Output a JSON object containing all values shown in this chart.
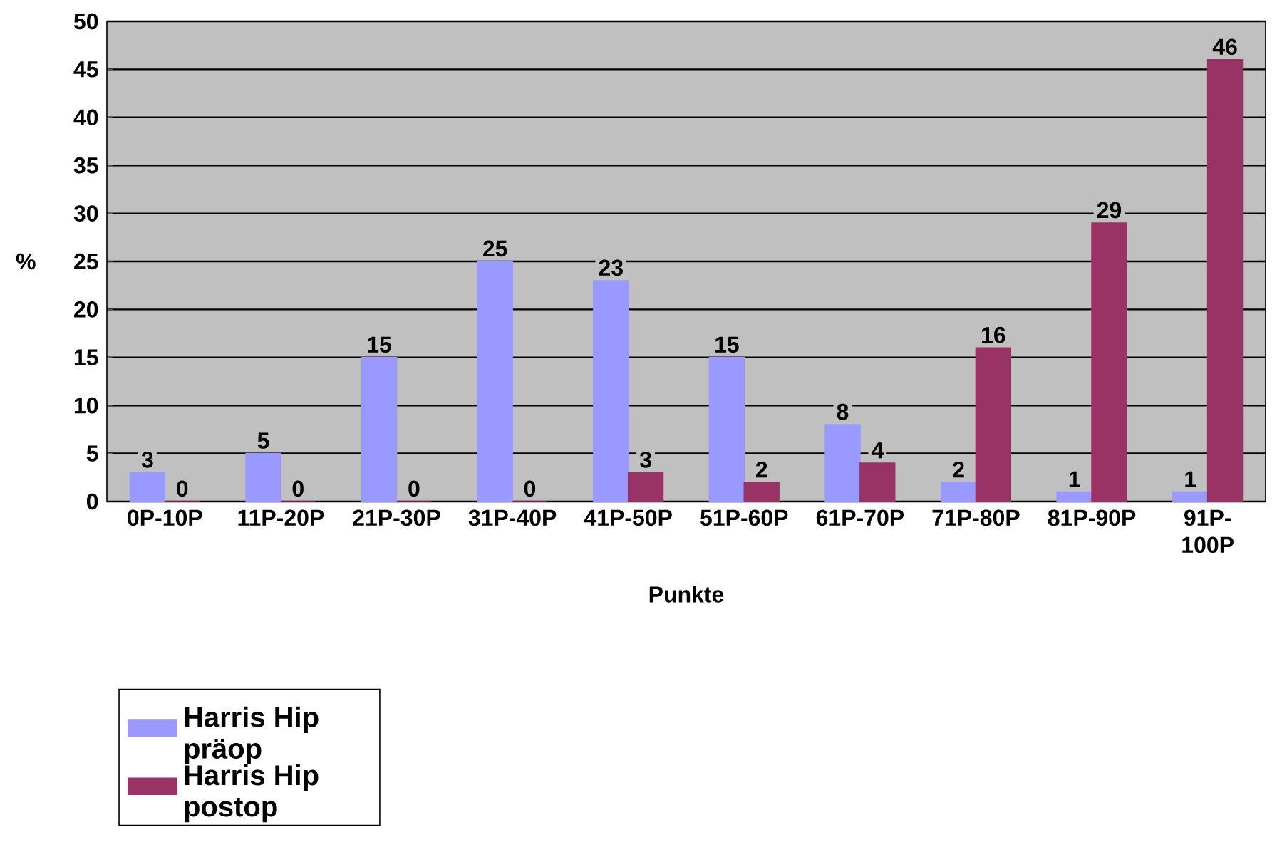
{
  "chart_data": {
    "type": "bar",
    "xlabel": "Punkte",
    "ylabel": "%",
    "categories": [
      "0P-10P",
      "11P-20P",
      "21P-30P",
      "31P-40P",
      "41P-50P",
      "51P-60P",
      "61P-70P",
      "71P-80P",
      "81P-90P",
      "91P-100P"
    ],
    "series": [
      {
        "name": "Harris Hip präop",
        "color": "#9999ff",
        "values": [
          3,
          5,
          15,
          25,
          23,
          15,
          8,
          2,
          1,
          1
        ]
      },
      {
        "name": "Harris Hip postop",
        "color": "#993366",
        "values": [
          0,
          0,
          0,
          0,
          3,
          2,
          4,
          16,
          29,
          46
        ]
      }
    ],
    "ylim": [
      0,
      50
    ],
    "yticks": [
      0,
      5,
      10,
      15,
      20,
      25,
      30,
      35,
      40,
      45,
      50
    ],
    "grid": "y",
    "legend": "bottom left",
    "data_labels": true
  }
}
